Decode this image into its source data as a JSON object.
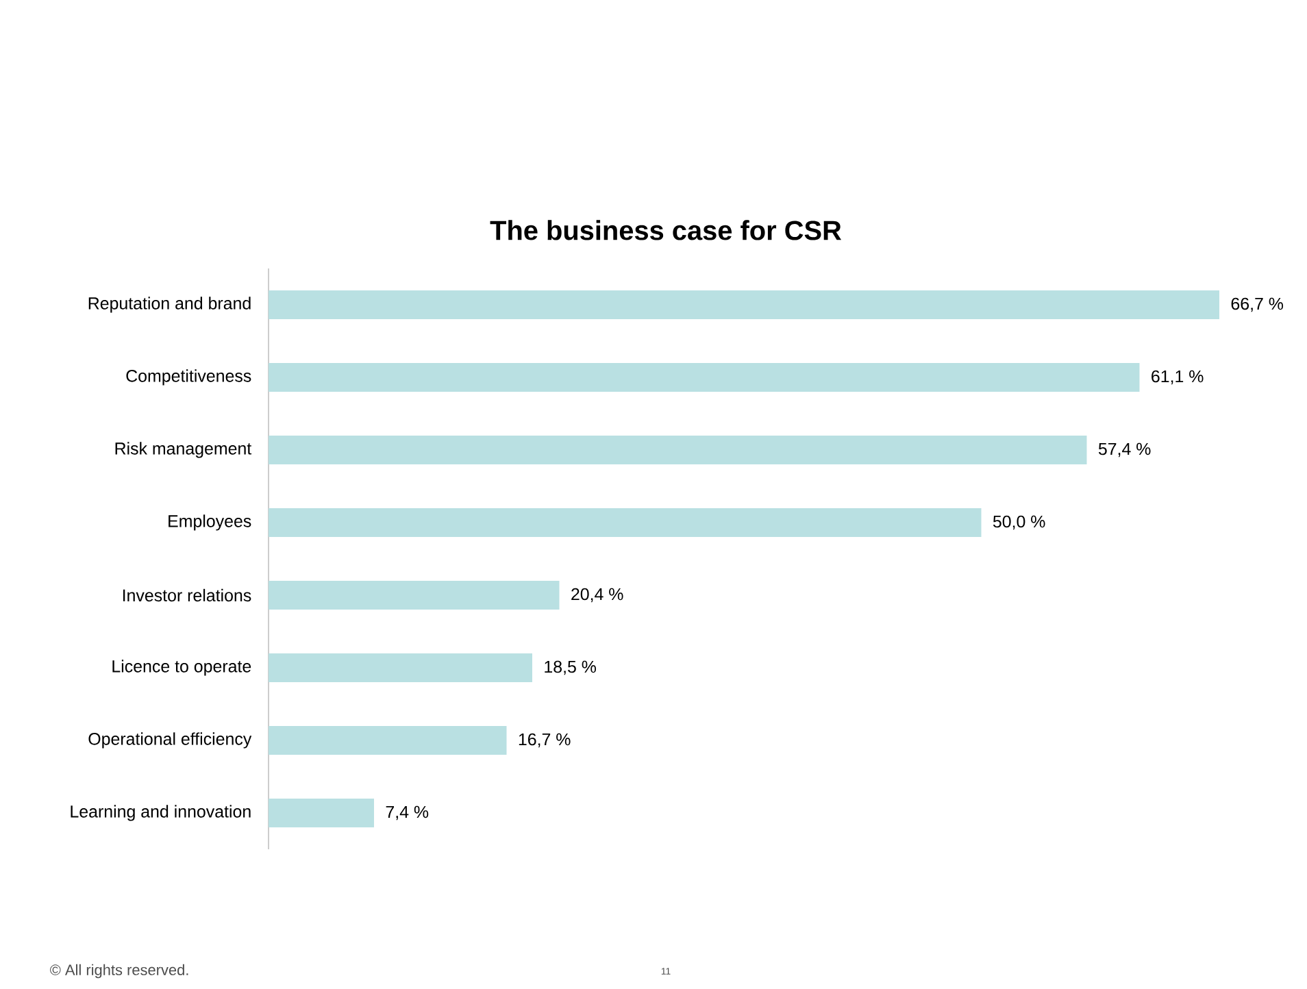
{
  "chart_data": {
    "type": "bar",
    "orientation": "horizontal",
    "title": "The business case for CSR",
    "categories": [
      "Reputation and brand",
      "Competitiveness",
      "Risk management",
      "Employees",
      "Investor relations",
      "Licence to operate",
      "Operational efficiency",
      "Learning and innovation"
    ],
    "values": [
      66.7,
      61.1,
      57.4,
      50.0,
      20.4,
      18.5,
      16.7,
      7.4
    ],
    "value_labels": [
      "66,7 %",
      "61,1 %",
      "57,4 %",
      "50,0 %",
      "20,4 %",
      "18,5 %",
      "16,7 %",
      "7,4 %"
    ],
    "color": "#b9e0e2",
    "annotations": [
      "© All rights reserved.",
      "11"
    ]
  }
}
